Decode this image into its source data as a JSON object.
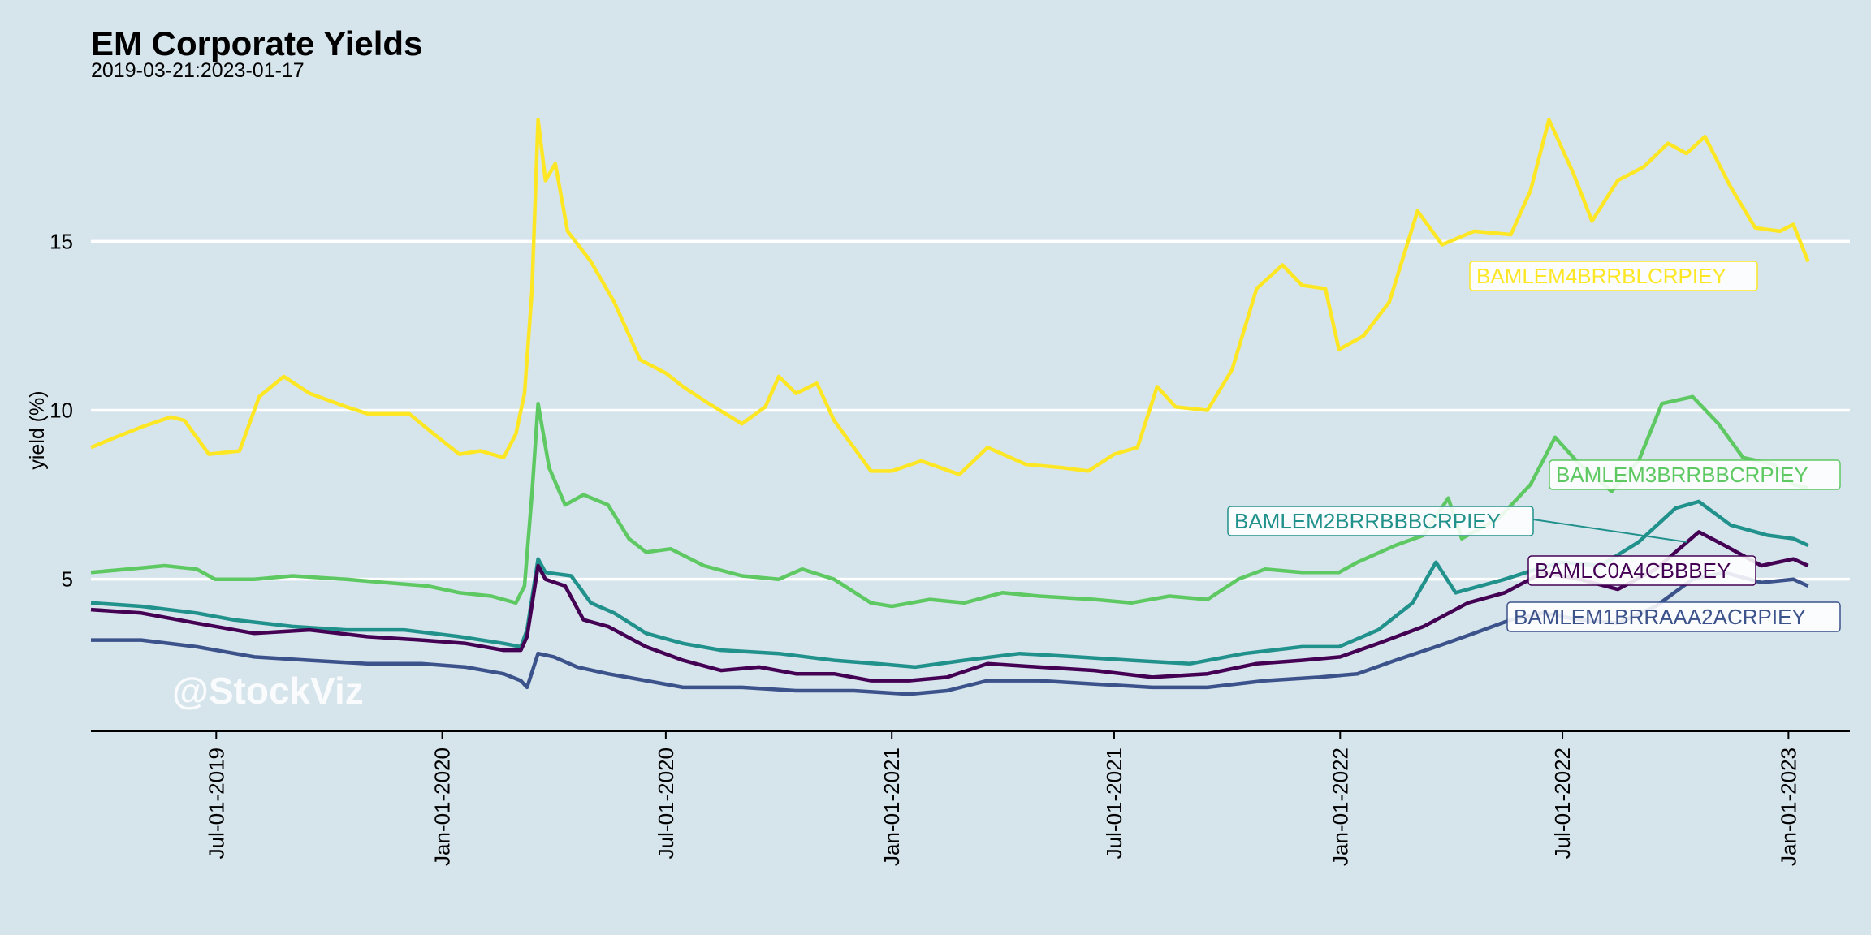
{
  "watermark": "@StockViz",
  "chart_data": {
    "type": "line",
    "title": "EM Corporate Yields",
    "subtitle": "2019-03-21:2023-01-17",
    "xlabel": "",
    "ylabel": "yield (%)",
    "xlim": [
      "2019-03-21",
      "2023-02-20"
    ],
    "ylim": [
      0.5,
      19.5
    ],
    "grid": "horizontal major lines at y ticks",
    "legend": "none (direct labels on lines)",
    "y_ticks": [
      5,
      10,
      15
    ],
    "y_tick_labels": [
      "5",
      "10",
      "15"
    ],
    "x_ticks": [
      "2019-07-01",
      "2020-01-01",
      "2020-07-01",
      "2021-01-01",
      "2021-07-01",
      "2022-01-01",
      "2022-07-01",
      "2023-01-01"
    ],
    "x_tick_labels": [
      "Jul-01-2019",
      "Jan-01-2020",
      "Jul-01-2020",
      "Jan-01-2021",
      "Jul-01-2021",
      "Jan-01-2022",
      "Jul-01-2022",
      "Jan-01-2023"
    ],
    "series": [
      {
        "name": "BAMLEM4BRRBLCRPIEY",
        "color": "#fde725",
        "points": [
          [
            "2019-03-21",
            8.9
          ],
          [
            "2019-04-10",
            9.2
          ],
          [
            "2019-05-01",
            9.5
          ],
          [
            "2019-05-25",
            9.8
          ],
          [
            "2019-06-05",
            9.7
          ],
          [
            "2019-06-25",
            8.7
          ],
          [
            "2019-07-20",
            8.8
          ],
          [
            "2019-08-05",
            10.4
          ],
          [
            "2019-08-25",
            11.0
          ],
          [
            "2019-09-15",
            10.5
          ],
          [
            "2019-10-15",
            10.1
          ],
          [
            "2019-11-01",
            9.9
          ],
          [
            "2019-12-05",
            9.9
          ],
          [
            "2019-12-25",
            9.3
          ],
          [
            "2020-01-15",
            8.7
          ],
          [
            "2020-02-01",
            8.8
          ],
          [
            "2020-02-20",
            8.6
          ],
          [
            "2020-03-01",
            9.3
          ],
          [
            "2020-03-08",
            10.5
          ],
          [
            "2020-03-14",
            13.5
          ],
          [
            "2020-03-19",
            18.6
          ],
          [
            "2020-03-25",
            16.8
          ],
          [
            "2020-04-02",
            17.3
          ],
          [
            "2020-04-12",
            15.3
          ],
          [
            "2020-05-01",
            14.4
          ],
          [
            "2020-05-20",
            13.2
          ],
          [
            "2020-06-10",
            11.5
          ],
          [
            "2020-07-01",
            11.1
          ],
          [
            "2020-07-15",
            10.7
          ],
          [
            "2020-08-05",
            10.2
          ],
          [
            "2020-09-01",
            9.6
          ],
          [
            "2020-09-20",
            10.1
          ],
          [
            "2020-10-01",
            11.0
          ],
          [
            "2020-10-15",
            10.5
          ],
          [
            "2020-11-01",
            10.8
          ],
          [
            "2020-11-15",
            9.7
          ],
          [
            "2020-12-15",
            8.2
          ],
          [
            "2021-01-01",
            8.2
          ],
          [
            "2021-01-25",
            8.5
          ],
          [
            "2021-02-25",
            8.1
          ],
          [
            "2021-03-20",
            8.9
          ],
          [
            "2021-04-20",
            8.4
          ],
          [
            "2021-05-20",
            8.3
          ],
          [
            "2021-06-10",
            8.2
          ],
          [
            "2021-07-01",
            8.7
          ],
          [
            "2021-07-20",
            8.9
          ],
          [
            "2021-08-05",
            10.7
          ],
          [
            "2021-08-20",
            10.1
          ],
          [
            "2021-09-15",
            10.0
          ],
          [
            "2021-10-05",
            11.2
          ],
          [
            "2021-10-25",
            13.6
          ],
          [
            "2021-11-15",
            14.3
          ],
          [
            "2021-12-01",
            13.7
          ],
          [
            "2021-12-20",
            13.6
          ],
          [
            "2021-12-31",
            11.8
          ],
          [
            "2022-01-20",
            12.2
          ],
          [
            "2022-02-10",
            13.2
          ],
          [
            "2022-03-05",
            15.9
          ],
          [
            "2022-03-25",
            14.9
          ],
          [
            "2022-04-20",
            15.3
          ],
          [
            "2022-05-20",
            15.2
          ],
          [
            "2022-06-05",
            16.5
          ],
          [
            "2022-06-20",
            18.6
          ],
          [
            "2022-07-10",
            17.0
          ],
          [
            "2022-07-25",
            15.6
          ],
          [
            "2022-08-15",
            16.8
          ],
          [
            "2022-09-05",
            17.2
          ],
          [
            "2022-09-25",
            17.9
          ],
          [
            "2022-10-10",
            17.6
          ],
          [
            "2022-10-25",
            18.1
          ],
          [
            "2022-11-15",
            16.6
          ],
          [
            "2022-12-05",
            15.4
          ],
          [
            "2022-12-25",
            15.3
          ],
          [
            "2023-01-05",
            15.5
          ],
          [
            "2023-01-17",
            14.4
          ]
        ],
        "label": "BAMLEM4BRRBLCRPIEY"
      },
      {
        "name": "BAMLEM3BRRBBCRPIEY",
        "color": "#5ec962",
        "points": [
          [
            "2019-03-21",
            5.2
          ],
          [
            "2019-04-20",
            5.3
          ],
          [
            "2019-05-20",
            5.4
          ],
          [
            "2019-06-15",
            5.3
          ],
          [
            "2019-06-30",
            5.0
          ],
          [
            "2019-08-01",
            5.0
          ],
          [
            "2019-09-01",
            5.1
          ],
          [
            "2019-10-15",
            5.0
          ],
          [
            "2019-11-15",
            4.9
          ],
          [
            "2019-12-20",
            4.8
          ],
          [
            "2020-01-15",
            4.6
          ],
          [
            "2020-02-10",
            4.5
          ],
          [
            "2020-03-01",
            4.3
          ],
          [
            "2020-03-08",
            4.8
          ],
          [
            "2020-03-14",
            7.5
          ],
          [
            "2020-03-19",
            10.2
          ],
          [
            "2020-03-28",
            8.3
          ],
          [
            "2020-04-10",
            7.2
          ],
          [
            "2020-04-25",
            7.5
          ],
          [
            "2020-05-15",
            7.2
          ],
          [
            "2020-06-01",
            6.2
          ],
          [
            "2020-06-15",
            5.8
          ],
          [
            "2020-07-05",
            5.9
          ],
          [
            "2020-08-01",
            5.4
          ],
          [
            "2020-09-01",
            5.1
          ],
          [
            "2020-10-01",
            5.0
          ],
          [
            "2020-10-20",
            5.3
          ],
          [
            "2020-11-15",
            5.0
          ],
          [
            "2020-12-15",
            4.3
          ],
          [
            "2021-01-01",
            4.2
          ],
          [
            "2021-02-01",
            4.4
          ],
          [
            "2021-03-01",
            4.3
          ],
          [
            "2021-04-01",
            4.6
          ],
          [
            "2021-05-01",
            4.5
          ],
          [
            "2021-06-15",
            4.4
          ],
          [
            "2021-07-15",
            4.3
          ],
          [
            "2021-08-15",
            4.5
          ],
          [
            "2021-09-15",
            4.4
          ],
          [
            "2021-10-10",
            5.0
          ],
          [
            "2021-11-01",
            5.3
          ],
          [
            "2021-12-01",
            5.2
          ],
          [
            "2021-12-31",
            5.2
          ],
          [
            "2022-01-15",
            5.5
          ],
          [
            "2022-02-15",
            6.0
          ],
          [
            "2022-03-10",
            6.3
          ],
          [
            "2022-03-30",
            7.4
          ],
          [
            "2022-04-10",
            6.2
          ],
          [
            "2022-05-10",
            6.8
          ],
          [
            "2022-06-05",
            7.8
          ],
          [
            "2022-06-25",
            9.2
          ],
          [
            "2022-07-15",
            8.4
          ],
          [
            "2022-08-10",
            7.6
          ],
          [
            "2022-09-01",
            8.5
          ],
          [
            "2022-09-20",
            10.2
          ],
          [
            "2022-10-15",
            10.4
          ],
          [
            "2022-11-05",
            9.6
          ],
          [
            "2022-11-25",
            8.6
          ],
          [
            "2022-12-20",
            8.4
          ],
          [
            "2023-01-05",
            7.8
          ],
          [
            "2023-01-17",
            7.7
          ]
        ],
        "label": "BAMLEM3BRRBBCRPIEY"
      },
      {
        "name": "BAMLEM2BRRBBBCRPIEY",
        "color": "#21918c",
        "points": [
          [
            "2019-03-21",
            4.3
          ],
          [
            "2019-05-01",
            4.2
          ],
          [
            "2019-06-15",
            4.0
          ],
          [
            "2019-07-15",
            3.8
          ],
          [
            "2019-09-01",
            3.6
          ],
          [
            "2019-10-15",
            3.5
          ],
          [
            "2019-12-01",
            3.5
          ],
          [
            "2020-01-15",
            3.3
          ],
          [
            "2020-02-20",
            3.1
          ],
          [
            "2020-03-05",
            3.0
          ],
          [
            "2020-03-10",
            3.5
          ],
          [
            "2020-03-19",
            5.6
          ],
          [
            "2020-03-25",
            5.2
          ],
          [
            "2020-04-15",
            5.1
          ],
          [
            "2020-05-01",
            4.3
          ],
          [
            "2020-05-20",
            4.0
          ],
          [
            "2020-06-15",
            3.4
          ],
          [
            "2020-07-15",
            3.1
          ],
          [
            "2020-08-15",
            2.9
          ],
          [
            "2020-10-01",
            2.8
          ],
          [
            "2020-11-15",
            2.6
          ],
          [
            "2020-12-20",
            2.5
          ],
          [
            "2021-01-20",
            2.4
          ],
          [
            "2021-03-01",
            2.6
          ],
          [
            "2021-04-15",
            2.8
          ],
          [
            "2021-06-01",
            2.7
          ],
          [
            "2021-07-15",
            2.6
          ],
          [
            "2021-09-01",
            2.5
          ],
          [
            "2021-10-15",
            2.8
          ],
          [
            "2021-12-01",
            3.0
          ],
          [
            "2021-12-31",
            3.0
          ],
          [
            "2022-02-01",
            3.5
          ],
          [
            "2022-03-01",
            4.3
          ],
          [
            "2022-03-20",
            5.5
          ],
          [
            "2022-04-05",
            4.6
          ],
          [
            "2022-05-15",
            5.0
          ],
          [
            "2022-06-10",
            5.3
          ],
          [
            "2022-07-01",
            5.5
          ],
          [
            "2022-08-01",
            5.4
          ],
          [
            "2022-09-01",
            6.1
          ],
          [
            "2022-10-01",
            7.1
          ],
          [
            "2022-10-20",
            7.3
          ],
          [
            "2022-11-15",
            6.6
          ],
          [
            "2022-12-15",
            6.3
          ],
          [
            "2023-01-05",
            6.2
          ],
          [
            "2023-01-17",
            6.0
          ]
        ],
        "label": "BAMLEM2BRRBBBCRPIEY"
      },
      {
        "name": "BAMLC0A4CBBBEY",
        "color": "#440154",
        "points": [
          [
            "2019-03-21",
            4.1
          ],
          [
            "2019-05-01",
            4.0
          ],
          [
            "2019-06-15",
            3.7
          ],
          [
            "2019-08-01",
            3.4
          ],
          [
            "2019-09-15",
            3.5
          ],
          [
            "2019-11-01",
            3.3
          ],
          [
            "2019-12-15",
            3.2
          ],
          [
            "2020-01-20",
            3.1
          ],
          [
            "2020-02-20",
            2.9
          ],
          [
            "2020-03-05",
            2.9
          ],
          [
            "2020-03-10",
            3.3
          ],
          [
            "2020-03-19",
            5.4
          ],
          [
            "2020-03-25",
            5.0
          ],
          [
            "2020-04-10",
            4.8
          ],
          [
            "2020-04-25",
            3.8
          ],
          [
            "2020-05-15",
            3.6
          ],
          [
            "2020-06-15",
            3.0
          ],
          [
            "2020-07-15",
            2.6
          ],
          [
            "2020-08-15",
            2.3
          ],
          [
            "2020-09-15",
            2.4
          ],
          [
            "2020-10-15",
            2.2
          ],
          [
            "2020-11-15",
            2.2
          ],
          [
            "2020-12-15",
            2.0
          ],
          [
            "2021-01-15",
            2.0
          ],
          [
            "2021-02-15",
            2.1
          ],
          [
            "2021-03-20",
            2.5
          ],
          [
            "2021-05-01",
            2.4
          ],
          [
            "2021-06-15",
            2.3
          ],
          [
            "2021-08-01",
            2.1
          ],
          [
            "2021-09-15",
            2.2
          ],
          [
            "2021-10-25",
            2.5
          ],
          [
            "2021-12-01",
            2.6
          ],
          [
            "2022-01-01",
            2.7
          ],
          [
            "2022-02-01",
            3.1
          ],
          [
            "2022-03-10",
            3.6
          ],
          [
            "2022-04-15",
            4.3
          ],
          [
            "2022-05-15",
            4.6
          ],
          [
            "2022-06-15",
            5.2
          ],
          [
            "2022-07-15",
            5.0
          ],
          [
            "2022-08-15",
            4.7
          ],
          [
            "2022-09-15",
            5.3
          ],
          [
            "2022-10-20",
            6.4
          ],
          [
            "2022-11-10",
            6.0
          ],
          [
            "2022-12-10",
            5.4
          ],
          [
            "2023-01-05",
            5.6
          ],
          [
            "2023-01-17",
            5.4
          ]
        ],
        "label": "BAMLC0A4CBBBEY"
      },
      {
        "name": "BAMLEM1BRRAAA2ACRPIEY",
        "color": "#3b528b",
        "points": [
          [
            "2019-03-21",
            3.2
          ],
          [
            "2019-05-01",
            3.2
          ],
          [
            "2019-06-15",
            3.0
          ],
          [
            "2019-08-01",
            2.7
          ],
          [
            "2019-09-15",
            2.6
          ],
          [
            "2019-11-01",
            2.5
          ],
          [
            "2019-12-15",
            2.5
          ],
          [
            "2020-01-20",
            2.4
          ],
          [
            "2020-02-20",
            2.2
          ],
          [
            "2020-03-05",
            2.0
          ],
          [
            "2020-03-10",
            1.8
          ],
          [
            "2020-03-19",
            2.8
          ],
          [
            "2020-04-01",
            2.7
          ],
          [
            "2020-04-20",
            2.4
          ],
          [
            "2020-05-15",
            2.2
          ],
          [
            "2020-06-15",
            2.0
          ],
          [
            "2020-07-15",
            1.8
          ],
          [
            "2020-09-01",
            1.8
          ],
          [
            "2020-10-15",
            1.7
          ],
          [
            "2020-12-01",
            1.7
          ],
          [
            "2021-01-15",
            1.6
          ],
          [
            "2021-02-15",
            1.7
          ],
          [
            "2021-03-20",
            2.0
          ],
          [
            "2021-05-01",
            2.0
          ],
          [
            "2021-06-15",
            1.9
          ],
          [
            "2021-08-01",
            1.8
          ],
          [
            "2021-09-15",
            1.8
          ],
          [
            "2021-11-01",
            2.0
          ],
          [
            "2021-12-15",
            2.1
          ],
          [
            "2022-01-15",
            2.2
          ],
          [
            "2022-02-15",
            2.6
          ],
          [
            "2022-03-20",
            3.0
          ],
          [
            "2022-04-20",
            3.4
          ],
          [
            "2022-05-20",
            3.8
          ],
          [
            "2022-06-15",
            4.0
          ],
          [
            "2022-07-15",
            3.8
          ],
          [
            "2022-08-15",
            3.7
          ],
          [
            "2022-09-15",
            4.2
          ],
          [
            "2022-10-15",
            5.0
          ],
          [
            "2022-11-10",
            5.2
          ],
          [
            "2022-12-10",
            4.9
          ],
          [
            "2023-01-05",
            5.0
          ],
          [
            "2023-01-17",
            4.8
          ]
        ],
        "label": "BAMLEM1BRRAAA2ACRPIEY"
      }
    ]
  }
}
